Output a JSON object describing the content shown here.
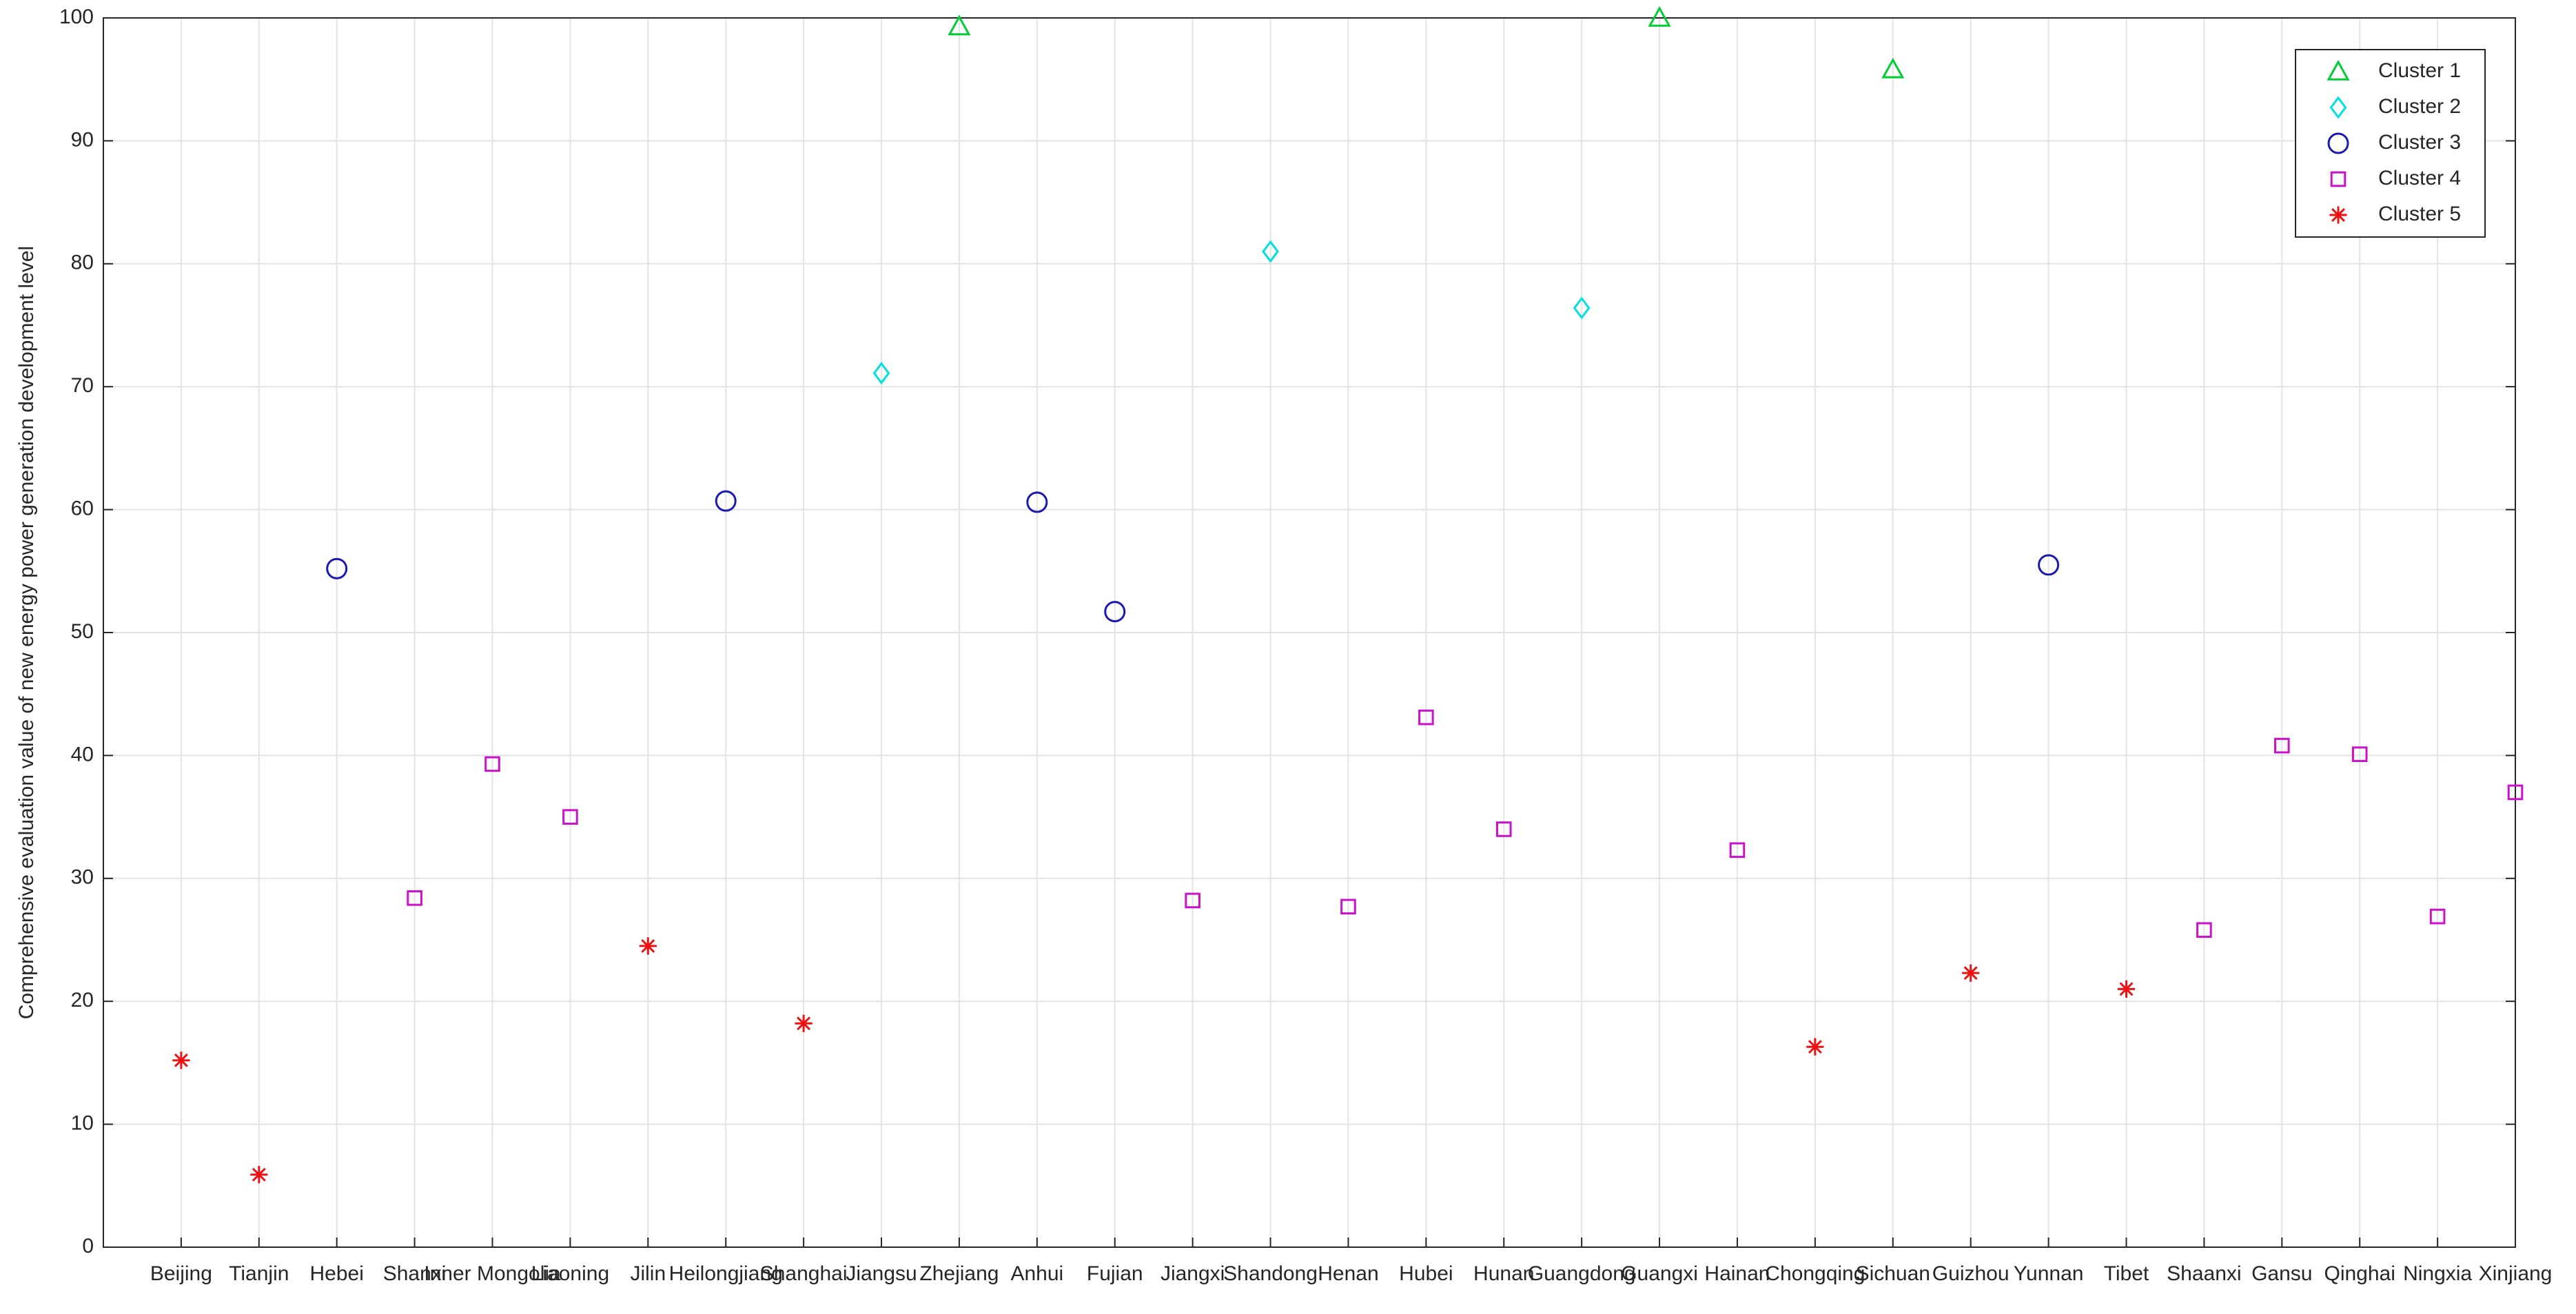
{
  "chart_data": {
    "type": "scatter",
    "y_label": "Comprehensive evaluation value of new energy power generation development level",
    "categories": [
      "Beijing",
      "Tianjin",
      "Hebei",
      "Shanxi",
      "Inner Mongolia",
      "Liaoning",
      "Jilin",
      "Heilongjiang",
      "Shanghai",
      "Jiangsu",
      "Zhejiang",
      "Anhui",
      "Fujian",
      "Jiangxi",
      "Shandong",
      "Henan",
      "Hubei",
      "Hunan",
      "Guangdong",
      "Guangxi",
      "Hainan",
      "Chongqing",
      "Sichuan",
      "Guizhou",
      "Yunnan",
      "Tibet",
      "Shaanxi",
      "Gansu",
      "Qinghai",
      "Ningxia",
      "Xinjiang"
    ],
    "series": [
      {
        "name": "Cluster 1",
        "color": "#00cc33",
        "marker": "triangle",
        "values": [
          null,
          null,
          null,
          null,
          null,
          null,
          null,
          null,
          null,
          null,
          99.3,
          null,
          null,
          null,
          null,
          null,
          null,
          null,
          null,
          100,
          null,
          null,
          95.8,
          null,
          null,
          null,
          null,
          null,
          null,
          null,
          null
        ]
      },
      {
        "name": "Cluster 2",
        "color": "#00e0e0",
        "marker": "diamond",
        "values": [
          null,
          null,
          null,
          null,
          null,
          null,
          null,
          null,
          null,
          71.1,
          null,
          null,
          null,
          null,
          81.0,
          null,
          null,
          null,
          76.4,
          null,
          null,
          null,
          null,
          null,
          null,
          null,
          null,
          null,
          null,
          null,
          null
        ]
      },
      {
        "name": "Cluster 3",
        "color": "#1a1ab0",
        "marker": "circle",
        "values": [
          null,
          null,
          55.2,
          null,
          null,
          null,
          null,
          60.7,
          null,
          null,
          null,
          60.6,
          51.7,
          null,
          null,
          null,
          null,
          null,
          null,
          null,
          null,
          null,
          null,
          null,
          55.5,
          null,
          null,
          null,
          null,
          null,
          null
        ]
      },
      {
        "name": "Cluster 4",
        "color": "#cc11cc",
        "marker": "square",
        "values": [
          null,
          null,
          null,
          28.4,
          39.3,
          35.0,
          null,
          null,
          null,
          null,
          null,
          null,
          null,
          28.2,
          null,
          27.7,
          43.1,
          34.0,
          null,
          null,
          32.3,
          null,
          null,
          null,
          null,
          null,
          25.8,
          40.8,
          40.1,
          26.9,
          37.0
        ]
      },
      {
        "name": "Cluster 5",
        "color": "#ee1111",
        "marker": "asterisk",
        "values": [
          15.2,
          5.9,
          null,
          null,
          null,
          null,
          24.5,
          null,
          18.2,
          null,
          null,
          null,
          null,
          null,
          null,
          null,
          null,
          null,
          null,
          null,
          null,
          16.3,
          null,
          22.3,
          null,
          21.0,
          null,
          null,
          null,
          null,
          null
        ]
      }
    ],
    "ylim": [
      0,
      100
    ],
    "yticks": [
      0,
      10,
      20,
      30,
      40,
      50,
      60,
      70,
      80,
      90,
      100
    ],
    "grid": true,
    "legend": "northeast"
  }
}
